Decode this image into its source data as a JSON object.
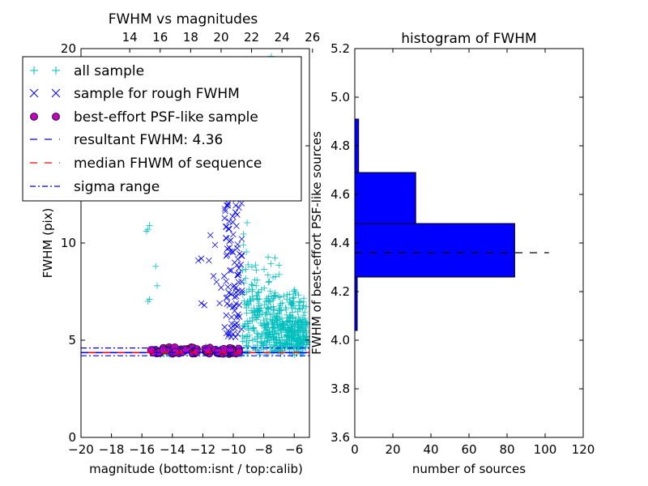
{
  "chart_data": [
    {
      "type": "scatter",
      "title": "FWHM vs magnitudes",
      "xlabel": "magnitude (bottom:isnt / top:calib)",
      "ylabel": "FWHM (pix)",
      "xlim": [
        -20,
        -5
      ],
      "ylim": [
        0,
        20
      ],
      "xticks": [
        "−20",
        "−18",
        "−16",
        "−14",
        "−12",
        "−10",
        "−8",
        "−6"
      ],
      "xtick_values": [
        -20,
        -18,
        -16,
        -14,
        -12,
        -10,
        -8,
        -6
      ],
      "top_xticks": [
        "14",
        "16",
        "18",
        "20",
        "22",
        "24",
        "26"
      ],
      "top_xtick_values": [
        -16.8,
        -14.8,
        -12.8,
        -10.8,
        -8.8,
        -6.8,
        -4.8
      ],
      "yticks": [
        "0",
        "5",
        "10",
        "15",
        "20"
      ],
      "ytick_values": [
        0,
        5,
        10,
        15,
        20
      ],
      "grid": false,
      "legend_position": "upper-left",
      "series": [
        {
          "name": "all sample",
          "marker": "plus",
          "color": "#00bfbf",
          "points": [
            [
              -15.6,
              10.7
            ],
            [
              -15.5,
              10.9
            ],
            [
              -15.7,
              10.6
            ],
            [
              -15.1,
              8.8
            ],
            [
              -15.0,
              7.8
            ],
            [
              -15.5,
              7.1
            ],
            [
              -15.6,
              7.0
            ],
            [
              -13.2,
              15.6
            ],
            [
              -12.9,
              15.8
            ],
            [
              -9.7,
              15.2
            ],
            [
              -9.4,
              16.0
            ],
            [
              -8.6,
              17.2
            ],
            [
              -8.3,
              16.9
            ],
            [
              -7.5,
              19.6
            ],
            [
              -7.6,
              18.9
            ]
          ]
        },
        {
          "name": "sample for rough FWHM",
          "marker": "x",
          "color": "#0000ff",
          "points": [
            [
              -12.3,
              9.1
            ],
            [
              -12.1,
              9.2
            ],
            [
              -11.6,
              9.1
            ],
            [
              -11.3,
              8.3
            ],
            [
              -11.1,
              8.0
            ],
            [
              -12.1,
              6.9
            ],
            [
              -11.9,
              6.8
            ],
            [
              -10.8,
              7.7
            ],
            [
              -10.6,
              8.3
            ],
            [
              -10.4,
              7.2
            ],
            [
              -10.9,
              6.9
            ],
            [
              -11.5,
              10.4
            ],
            [
              -11.2,
              9.9
            ],
            [
              -10.2,
              12.6
            ]
          ]
        },
        {
          "name": "best-effort PSF-like sample",
          "marker": "circle",
          "color": "#bf00bf",
          "points": [
            [
              -15.4,
              4.5
            ],
            [
              -14.6,
              4.5
            ],
            [
              -13.8,
              4.4
            ],
            [
              -13.1,
              4.5
            ],
            [
              -12.4,
              4.4
            ],
            [
              -11.7,
              4.5
            ],
            [
              -11.0,
              4.4
            ],
            [
              -10.2,
              4.5
            ],
            [
              -9.6,
              4.4
            ]
          ]
        },
        {
          "name": "resultant FWHM: 4.36",
          "marker": "dashed",
          "color": "#0000ff",
          "value": 4.36
        },
        {
          "name": "median FHWM of sequence",
          "marker": "dashed",
          "color": "#ff0000",
          "value": 4.36
        },
        {
          "name": "sigma range",
          "marker": "dashdot",
          "color": "#0000ff",
          "range": [
            4.2,
            4.6
          ]
        }
      ]
    },
    {
      "type": "bar",
      "orientation": "horizontal",
      "title": "histogram of FWHM",
      "xlabel": "number of sources",
      "ylabel": "FWHM of best-effort PSF-like sources",
      "xlim": [
        0,
        120
      ],
      "ylim": [
        3.6,
        5.2
      ],
      "xticks": [
        "0",
        "20",
        "40",
        "60",
        "80",
        "100",
        "120"
      ],
      "xtick_values": [
        0,
        20,
        40,
        60,
        80,
        100,
        120
      ],
      "yticks": [
        "3.6",
        "3.8",
        "4.0",
        "4.2",
        "4.4",
        "4.6",
        "4.8",
        "5.0",
        "5.2"
      ],
      "ytick_values": [
        3.6,
        3.8,
        4.0,
        4.2,
        4.4,
        4.6,
        4.8,
        5.0,
        5.2
      ],
      "grid": false,
      "bar_color": "#0000ff",
      "bins": [
        {
          "from": 4.04,
          "to": 4.26,
          "count": 1
        },
        {
          "from": 4.26,
          "to": 4.48,
          "count": 84
        },
        {
          "from": 4.48,
          "to": 4.69,
          "count": 32
        },
        {
          "from": 4.69,
          "to": 4.91,
          "count": 2
        }
      ],
      "reference_line": {
        "value": 4.36,
        "x_to": 102,
        "style": "dashed",
        "color": "#000000"
      }
    }
  ]
}
